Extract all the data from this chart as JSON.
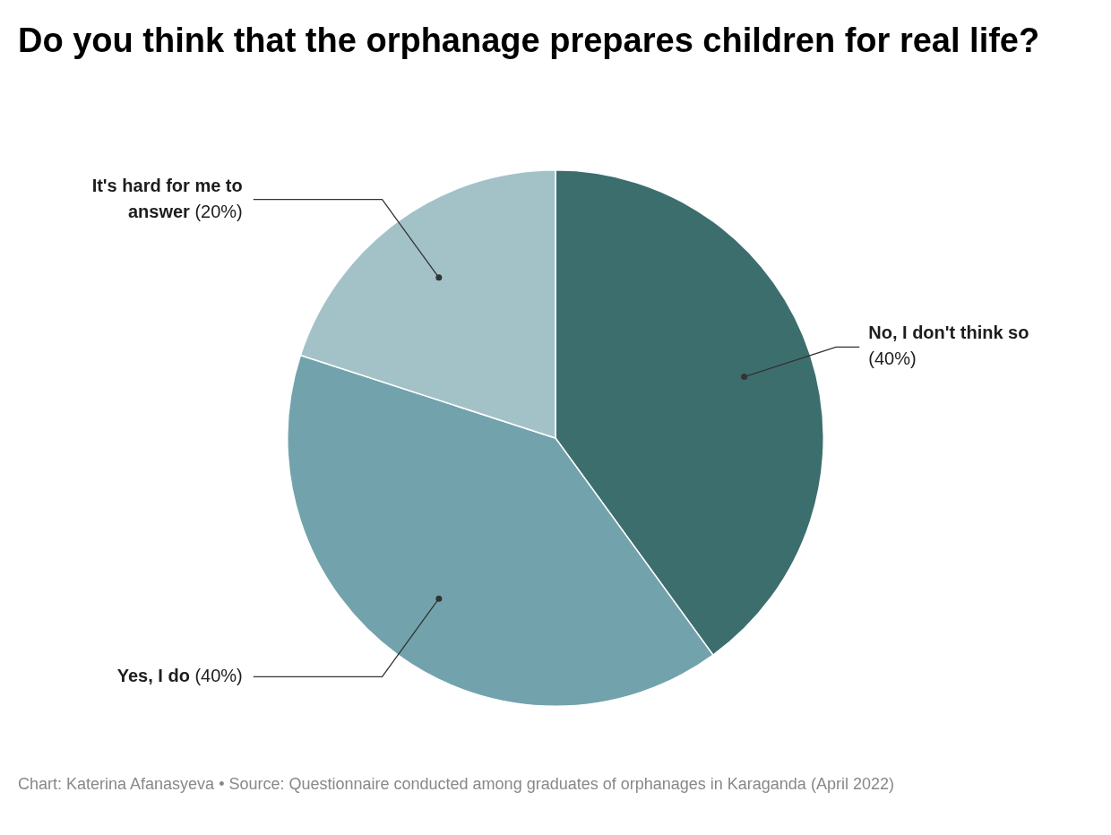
{
  "chart_data": {
    "type": "pie",
    "title": "Do you think that the orphanage prepares children for real life?",
    "categories": [
      "No, I don't think so",
      "Yes, I do",
      "It's hard for me to answer"
    ],
    "values": [
      40,
      40,
      20
    ],
    "value_labels": [
      "(40%)",
      "(40%)",
      "(20%)"
    ],
    "colors": [
      "#3d6e6e",
      "#72a3ac",
      "#a3c2c8"
    ],
    "legend": false,
    "annotations": [
      "Chart: Katerina Afanasyeva • Source: Questionnaire conducted among graduates of orphanages in Karaganda (April 2022)"
    ]
  }
}
